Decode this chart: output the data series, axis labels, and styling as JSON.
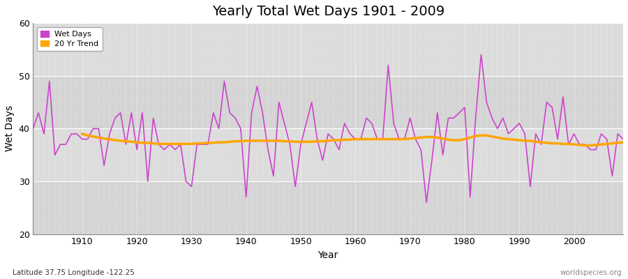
{
  "title": "Yearly Total Wet Days 1901 - 2009",
  "xlabel": "Year",
  "ylabel": "Wet Days",
  "subtitle": "Latitude 37.75 Longitude -122.25",
  "watermark": "worldspecies.org",
  "ylim": [
    20,
    60
  ],
  "yticks": [
    20,
    30,
    40,
    50,
    60
  ],
  "xlim": [
    1901,
    2009
  ],
  "wet_days_color": "#CC44CC",
  "trend_color": "#FFA500",
  "plot_bg_color": "#DCDCDC",
  "fig_bg_color": "#FFFFFF",
  "legend_wet": "Wet Days",
  "legend_trend": "20 Yr Trend",
  "years": [
    1901,
    1902,
    1903,
    1904,
    1905,
    1906,
    1907,
    1908,
    1909,
    1910,
    1911,
    1912,
    1913,
    1914,
    1915,
    1916,
    1917,
    1918,
    1919,
    1920,
    1921,
    1922,
    1923,
    1924,
    1925,
    1926,
    1927,
    1928,
    1929,
    1930,
    1931,
    1932,
    1933,
    1934,
    1935,
    1936,
    1937,
    1938,
    1939,
    1940,
    1941,
    1942,
    1943,
    1944,
    1945,
    1946,
    1947,
    1948,
    1949,
    1950,
    1951,
    1952,
    1953,
    1954,
    1955,
    1956,
    1957,
    1958,
    1959,
    1960,
    1961,
    1962,
    1963,
    1964,
    1965,
    1966,
    1967,
    1968,
    1969,
    1970,
    1971,
    1972,
    1973,
    1974,
    1975,
    1976,
    1977,
    1978,
    1979,
    1980,
    1981,
    1982,
    1983,
    1984,
    1985,
    1986,
    1987,
    1988,
    1989,
    1990,
    1991,
    1992,
    1993,
    1994,
    1995,
    1996,
    1997,
    1998,
    1999,
    2000,
    2001,
    2002,
    2003,
    2004,
    2005,
    2006,
    2007,
    2008,
    2009
  ],
  "wet_days": [
    40,
    43,
    39,
    49,
    35,
    37,
    37,
    39,
    39,
    38,
    38,
    40,
    40,
    33,
    39,
    42,
    43,
    37,
    43,
    36,
    43,
    30,
    42,
    37,
    36,
    37,
    36,
    37,
    30,
    29,
    37,
    37,
    37,
    43,
    40,
    49,
    43,
    42,
    40,
    27,
    43,
    48,
    43,
    36,
    31,
    45,
    41,
    37,
    29,
    37,
    41,
    45,
    38,
    34,
    39,
    38,
    36,
    41,
    39,
    38,
    38,
    42,
    41,
    38,
    38,
    52,
    41,
    38,
    38,
    42,
    38,
    36,
    26,
    34,
    43,
    35,
    42,
    42,
    43,
    44,
    27,
    42,
    54,
    45,
    42,
    40,
    42,
    39,
    40,
    41,
    39,
    29,
    39,
    37,
    45,
    44,
    38,
    46,
    37,
    39,
    37,
    37,
    36,
    36,
    39,
    38,
    31,
    39,
    38
  ],
  "trend_years": [
    1910,
    1911,
    1912,
    1913,
    1914,
    1915,
    1916,
    1917,
    1918,
    1919,
    1920,
    1921,
    1922,
    1923,
    1924,
    1925,
    1926,
    1927,
    1928,
    1929,
    1930,
    1931,
    1932,
    1933,
    1934,
    1935,
    1936,
    1937,
    1938,
    1939,
    1940,
    1941,
    1942,
    1943,
    1944,
    1945,
    1946,
    1947,
    1948,
    1949,
    1950,
    1951,
    1952,
    1953,
    1954,
    1955,
    1956,
    1957,
    1958,
    1959,
    1960,
    1961,
    1962,
    1963,
    1964,
    1965,
    1966,
    1967,
    1968,
    1969,
    1970,
    1971,
    1972,
    1973,
    1974,
    1975,
    1976,
    1977,
    1978,
    1979,
    1980,
    1981,
    1982,
    1983,
    1984,
    1985,
    1986,
    1987,
    1988,
    1989,
    1990,
    1991,
    1992,
    1993,
    1994,
    1995,
    1996,
    1997,
    1998,
    1999,
    2000,
    2001,
    2002,
    2003,
    2004,
    2005,
    2006,
    2007,
    2008,
    2009
  ],
  "trend_values": [
    39.0,
    38.7,
    38.5,
    38.3,
    38.1,
    38.0,
    37.8,
    37.7,
    37.6,
    37.5,
    37.4,
    37.3,
    37.3,
    37.2,
    37.1,
    37.1,
    37.1,
    37.1,
    37.1,
    37.1,
    37.1,
    37.2,
    37.2,
    37.3,
    37.3,
    37.4,
    37.4,
    37.5,
    37.6,
    37.6,
    37.7,
    37.7,
    37.7,
    37.7,
    37.7,
    37.7,
    37.7,
    37.6,
    37.6,
    37.5,
    37.5,
    37.5,
    37.5,
    37.6,
    37.6,
    37.7,
    37.8,
    37.8,
    37.9,
    37.9,
    38.0,
    38.0,
    38.0,
    38.0,
    38.0,
    38.0,
    38.0,
    38.0,
    38.0,
    38.0,
    38.1,
    38.2,
    38.3,
    38.4,
    38.4,
    38.3,
    38.1,
    37.9,
    37.8,
    37.8,
    38.0,
    38.3,
    38.6,
    38.7,
    38.7,
    38.5,
    38.3,
    38.1,
    38.0,
    37.9,
    37.8,
    37.7,
    37.7,
    37.5,
    37.4,
    37.3,
    37.2,
    37.2,
    37.1,
    37.1,
    37.0,
    36.9,
    36.8,
    36.8,
    36.9,
    37.0,
    37.1,
    37.2,
    37.3,
    37.4
  ],
  "band_colors": [
    "#D8D8D8",
    "#E0E0E0"
  ],
  "xticks": [
    1910,
    1920,
    1930,
    1940,
    1950,
    1960,
    1970,
    1980,
    1990,
    2000
  ]
}
